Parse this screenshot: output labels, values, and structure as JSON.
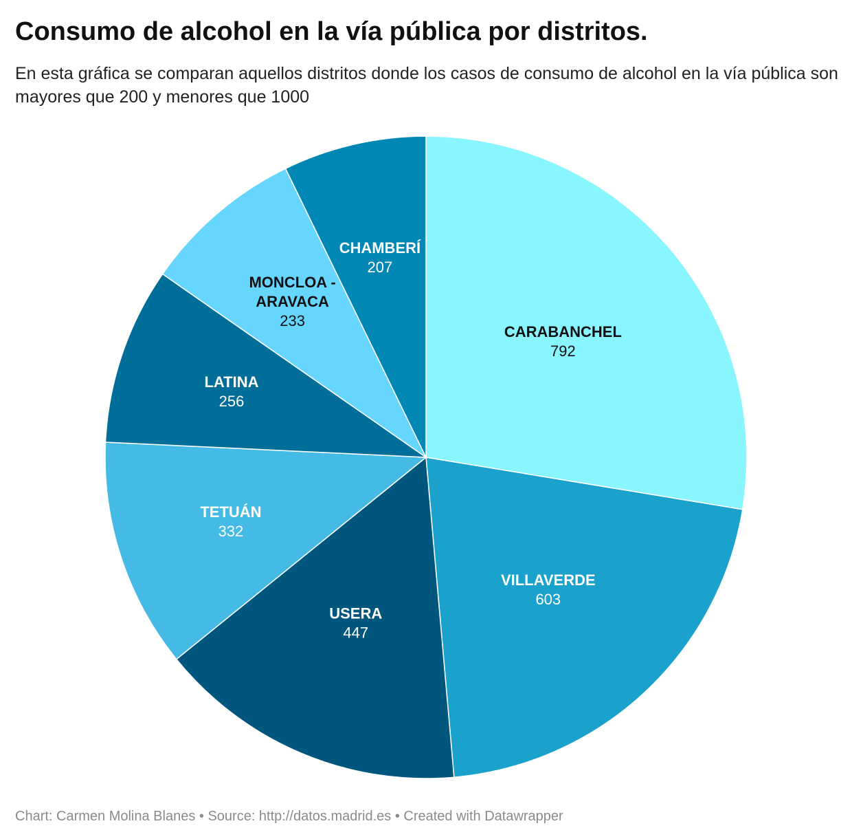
{
  "header": {
    "title": "Consumo de alcohol en la vía pública por distritos.",
    "subtitle": "En esta gráfica se comparan aquellos distritos donde los casos de consumo de alcohol en la vía pública son mayores que 200 y menores que 1000"
  },
  "footer": {
    "text": "Chart: Carmen Molina Blanes • Source: http://datos.madrid.es • Created with Datawrapper"
  },
  "chart_data": {
    "type": "pie",
    "title": "Consumo de alcohol en la vía pública por distritos.",
    "subtitle": "En esta gráfica se comparan aquellos distritos donde los casos de consumo de alcohol en la vía pública son mayores que 200 y menores que 1000",
    "slices": [
      {
        "label": "CARABANCHEL",
        "value": 792,
        "color": "#89f5ff",
        "text_color": "#111111"
      },
      {
        "label": "VILLAVERDE",
        "value": 603,
        "color": "#1aa2cc",
        "text_color": "#ffffff"
      },
      {
        "label": "USERA",
        "value": 447,
        "color": "#00567d",
        "text_color": "#ffffff"
      },
      {
        "label": "TETUÁN",
        "value": 332,
        "color": "#45bae5",
        "text_color": "#ffffff"
      },
      {
        "label": "LATINA",
        "value": 256,
        "color": "#006e99",
        "text_color": "#ffffff"
      },
      {
        "label": "MONCLOA - ARAVACA",
        "value": 233,
        "color": "#66d6ff",
        "text_color": "#111111"
      },
      {
        "label": "CHAMBERÍ",
        "value": 207,
        "color": "#0087b3",
        "text_color": "#ffffff"
      }
    ],
    "legend": "none",
    "labels": "inside"
  }
}
